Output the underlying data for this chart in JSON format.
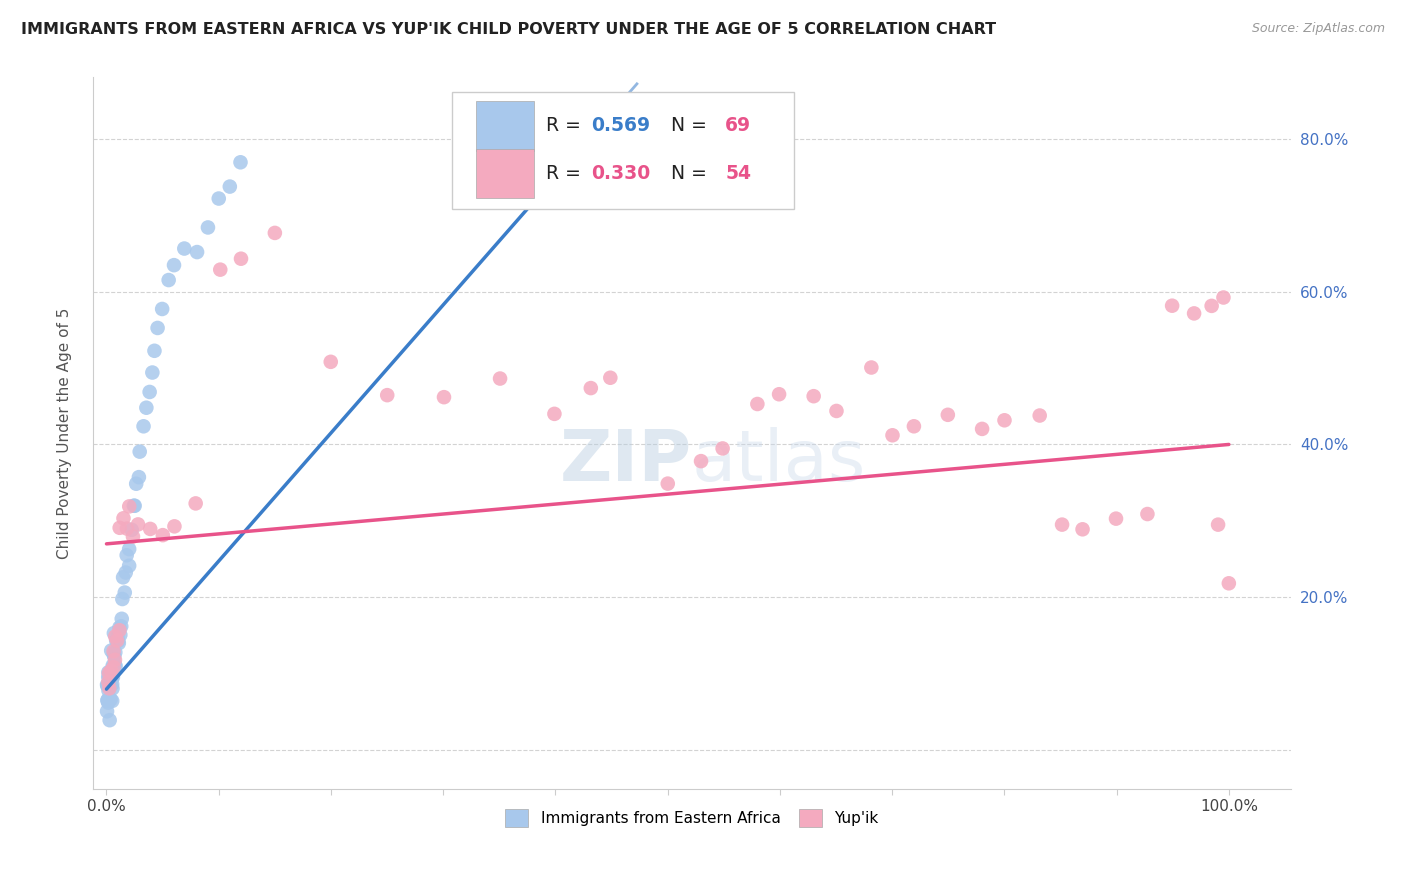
{
  "title": "IMMIGRANTS FROM EASTERN AFRICA VS YUP'IK CHILD POVERTY UNDER THE AGE OF 5 CORRELATION CHART",
  "source": "Source: ZipAtlas.com",
  "ylabel": "Child Poverty Under the Age of 5",
  "blue_R": 0.569,
  "blue_N": 69,
  "pink_R": 0.33,
  "pink_N": 54,
  "blue_color": "#A8C8EC",
  "pink_color": "#F4AABF",
  "blue_line_color": "#3A7DC9",
  "pink_line_color": "#E8538A",
  "tick_color": "#4472C4",
  "watermark_color": "#C8D8EE",
  "blue_label": "Immigrants from Eastern Africa",
  "pink_label": "Yup'ik",
  "blue_x": [
    0.001,
    0.001,
    0.001,
    0.001,
    0.001,
    0.002,
    0.002,
    0.002,
    0.002,
    0.002,
    0.002,
    0.003,
    0.003,
    0.003,
    0.003,
    0.003,
    0.004,
    0.004,
    0.004,
    0.004,
    0.005,
    0.005,
    0.005,
    0.005,
    0.006,
    0.006,
    0.006,
    0.007,
    0.007,
    0.008,
    0.008,
    0.008,
    0.009,
    0.009,
    0.01,
    0.01,
    0.011,
    0.012,
    0.012,
    0.013,
    0.014,
    0.015,
    0.015,
    0.016,
    0.017,
    0.018,
    0.019,
    0.02,
    0.022,
    0.024,
    0.025,
    0.027,
    0.028,
    0.03,
    0.033,
    0.035,
    0.038,
    0.04,
    0.042,
    0.045,
    0.05,
    0.055,
    0.06,
    0.07,
    0.08,
    0.09,
    0.1,
    0.11,
    0.12
  ],
  "blue_y": [
    0.05,
    0.06,
    0.07,
    0.08,
    0.09,
    0.05,
    0.06,
    0.08,
    0.09,
    0.1,
    0.11,
    0.06,
    0.07,
    0.08,
    0.09,
    0.1,
    0.07,
    0.09,
    0.1,
    0.12,
    0.08,
    0.09,
    0.1,
    0.11,
    0.1,
    0.11,
    0.12,
    0.11,
    0.13,
    0.11,
    0.13,
    0.15,
    0.12,
    0.14,
    0.13,
    0.15,
    0.14,
    0.15,
    0.17,
    0.16,
    0.18,
    0.2,
    0.22,
    0.21,
    0.23,
    0.25,
    0.24,
    0.27,
    0.29,
    0.31,
    0.33,
    0.35,
    0.36,
    0.39,
    0.42,
    0.44,
    0.47,
    0.49,
    0.52,
    0.55,
    0.58,
    0.62,
    0.64,
    0.66,
    0.65,
    0.68,
    0.72,
    0.74,
    0.76
  ],
  "pink_x": [
    0.001,
    0.002,
    0.003,
    0.004,
    0.005,
    0.006,
    0.007,
    0.008,
    0.009,
    0.01,
    0.012,
    0.015,
    0.018,
    0.02,
    0.025,
    0.03,
    0.04,
    0.05,
    0.06,
    0.08,
    0.1,
    0.12,
    0.15,
    0.2,
    0.25,
    0.3,
    0.35,
    0.4,
    0.43,
    0.45,
    0.5,
    0.53,
    0.55,
    0.58,
    0.6,
    0.63,
    0.65,
    0.68,
    0.7,
    0.72,
    0.75,
    0.78,
    0.8,
    0.83,
    0.85,
    0.87,
    0.9,
    0.93,
    0.95,
    0.97,
    0.985,
    0.99,
    0.995,
    1.0
  ],
  "pink_y": [
    0.08,
    0.09,
    0.1,
    0.12,
    0.11,
    0.13,
    0.12,
    0.15,
    0.14,
    0.16,
    0.28,
    0.3,
    0.29,
    0.32,
    0.28,
    0.3,
    0.29,
    0.28,
    0.29,
    0.32,
    0.63,
    0.65,
    0.68,
    0.5,
    0.46,
    0.46,
    0.49,
    0.44,
    0.48,
    0.49,
    0.35,
    0.38,
    0.39,
    0.46,
    0.47,
    0.47,
    0.45,
    0.5,
    0.42,
    0.42,
    0.44,
    0.42,
    0.43,
    0.44,
    0.29,
    0.29,
    0.3,
    0.31,
    0.58,
    0.57,
    0.58,
    0.3,
    0.59,
    0.22
  ]
}
